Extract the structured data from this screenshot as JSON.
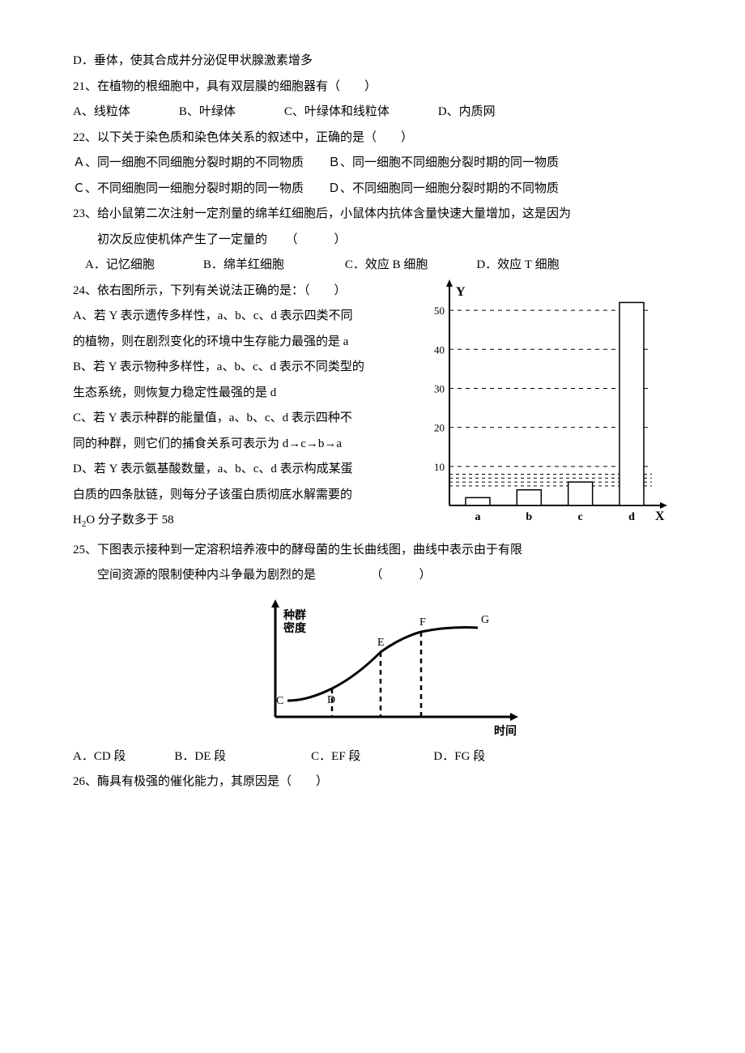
{
  "q20_D": "D．垂体，使其合成并分泌促甲状腺激素增多",
  "q21": "21、在植物的根细胞中，具有双层膜的细胞器有（　　）",
  "q21_opts": "A、线粒体　　　　B、叶绿体　　　　C、叶绿体和线粒体　　　　D、内质网",
  "q22": "22、以下关于染色质和染色体关系的叙述中，正确的是（　　）",
  "q22_AB": "Ａ、同一细胞不同细胞分裂时期的不同物质　　Ｂ、同一细胞不同细胞分裂时期的同一物质",
  "q22_CD": "Ｃ、不同细胞同一细胞分裂时期的同一物质　　Ｄ、不同细胞同一细胞分裂时期的不同物质",
  "q23": "23、给小鼠第二次注射一定剂量的绵羊红细胞后，小鼠体内抗体含量快速大量增加，这是因为",
  "q23b": "　　初次反应使机体产生了一定量的　　（　　　）",
  "q23_opts": "　A．记忆细胞　　　　B．绵羊红细胞　　　　　C．效应 B 细胞　　　　D．效应 T 细胞",
  "q24": "24、依右图所示，下列有关说法正确的是：（　　）",
  "q24_A1": "A、若 Y 表示遗传多样性，a、b、c、d 表示四类不同",
  "q24_A2": "的植物，则在剧烈变化的环境中生存能力最强的是 a",
  "q24_B1": "B、若 Y 表示物种多样性，a、b、c、d 表示不同类型的",
  "q24_B2": "生态系统，则恢复力稳定性最强的是 d",
  "q24_C1": "C、若 Y 表示种群的能量值，a、b、c、d 表示四种不",
  "q24_C2": "同的种群，则它们的捕食关系可表示为 d→c→b→a",
  "q24_D1": "D、若 Y 表示氨基酸数量，a、b、c、d 表示构成某蛋",
  "q24_D2": "白质的四条肽链，则每分子该蛋白质彻底水解需要的",
  "q24_D3_pre": "H",
  "q24_D3_sub": "2",
  "q24_D3_post": "O 分子数多于 58",
  "q25": "25、下图表示接种到一定溶积培养液中的酵母菌的生长曲线图，曲线中表示由于有限",
  "q25b": "　　空间资源的限制使种内斗争最为剧烈的是　　　　　（　　　）",
  "q25_opts": "A．CD 段　　　　B．DE 段　　　　　　　C．EF 段　　　　　　D．FG 段",
  "q26": "26、酶具有极强的催化能力，其原因是（　　）",
  "bar_chart": {
    "y_ticks": [
      10,
      20,
      30,
      40,
      50
    ],
    "x_labels": [
      "a",
      "b",
      "c",
      "d"
    ],
    "values": [
      2,
      4,
      6,
      52
    ],
    "guide_values": [
      5,
      6,
      7,
      8
    ],
    "axis_font": 13,
    "label_font": 14,
    "y_label": "Y",
    "x_label": "X"
  },
  "growth_chart": {
    "y_label": "种群\n密度",
    "x_label": "时间",
    "points": [
      "C",
      "D",
      "E",
      "F",
      "G"
    ]
  }
}
